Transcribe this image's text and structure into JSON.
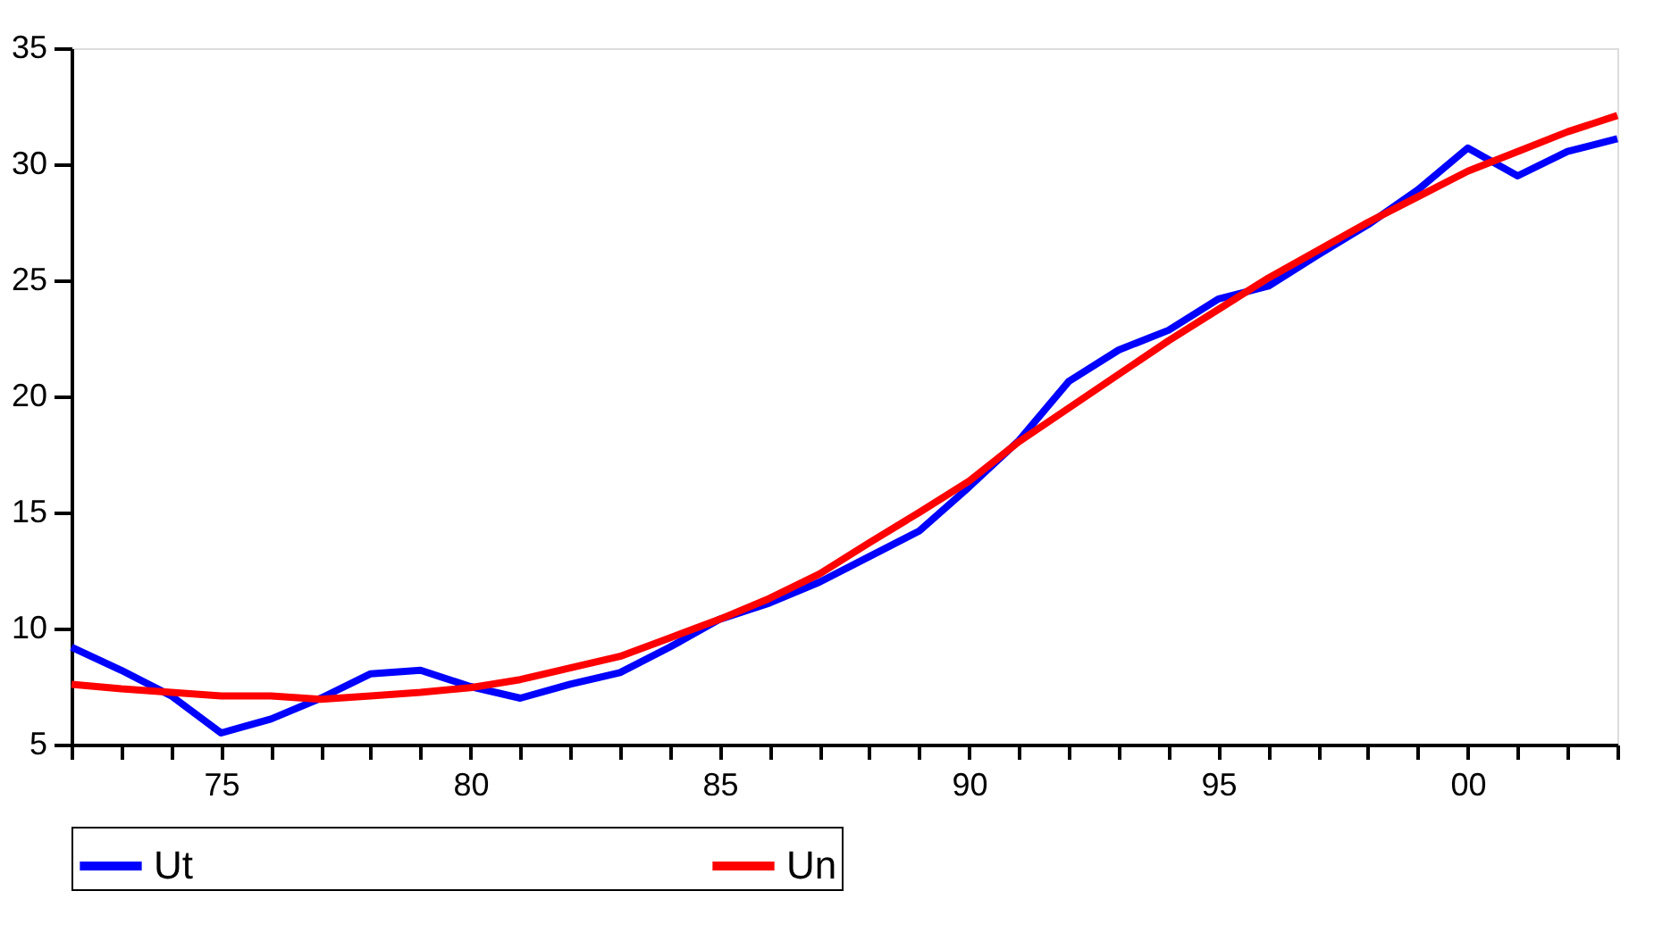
{
  "chart_data": {
    "type": "line",
    "x": [
      1972,
      1973,
      1974,
      1975,
      1976,
      1977,
      1978,
      1979,
      1980,
      1981,
      1982,
      1983,
      1984,
      1985,
      1986,
      1987,
      1988,
      1989,
      1990,
      1991,
      1992,
      1993,
      1994,
      1995,
      1996,
      1997,
      1998,
      1999,
      2000,
      2001,
      2002,
      2003
    ],
    "series": [
      {
        "name": "Ut",
        "color": "#0000ff",
        "values": [
          9.2,
          8.2,
          7.1,
          5.5,
          6.1,
          7.0,
          8.05,
          8.2,
          7.5,
          7.0,
          7.6,
          8.1,
          9.2,
          10.4,
          11.1,
          12.0,
          13.1,
          14.2,
          16.1,
          18.1,
          20.65,
          22.0,
          22.85,
          24.2,
          24.75,
          26.1,
          27.4,
          28.9,
          30.7,
          29.5,
          30.55,
          31.1
        ]
      },
      {
        "name": "Un",
        "color": "#ff0000",
        "values": [
          7.6,
          7.4,
          7.25,
          7.1,
          7.1,
          6.95,
          7.1,
          7.25,
          7.45,
          7.8,
          8.3,
          8.8,
          9.6,
          10.4,
          11.3,
          12.35,
          13.7,
          15.0,
          16.35,
          18.05,
          19.5,
          20.95,
          22.4,
          23.75,
          25.1,
          26.3,
          27.5,
          28.6,
          29.7,
          30.55,
          31.4,
          32.1
        ]
      }
    ],
    "xlim": [
      1972,
      2003
    ],
    "xticks": [
      {
        "value": 1972,
        "label": null
      },
      {
        "value": 1973,
        "label": null
      },
      {
        "value": 1974,
        "label": null
      },
      {
        "value": 1975,
        "label": "75"
      },
      {
        "value": 1976,
        "label": null
      },
      {
        "value": 1977,
        "label": null
      },
      {
        "value": 1978,
        "label": null
      },
      {
        "value": 1979,
        "label": null
      },
      {
        "value": 1980,
        "label": "80"
      },
      {
        "value": 1981,
        "label": null
      },
      {
        "value": 1982,
        "label": null
      },
      {
        "value": 1983,
        "label": null
      },
      {
        "value": 1984,
        "label": null
      },
      {
        "value": 1985,
        "label": "85"
      },
      {
        "value": 1986,
        "label": null
      },
      {
        "value": 1987,
        "label": null
      },
      {
        "value": 1988,
        "label": null
      },
      {
        "value": 1989,
        "label": null
      },
      {
        "value": 1990,
        "label": "90"
      },
      {
        "value": 1991,
        "label": null
      },
      {
        "value": 1992,
        "label": null
      },
      {
        "value": 1993,
        "label": null
      },
      {
        "value": 1994,
        "label": null
      },
      {
        "value": 1995,
        "label": "95"
      },
      {
        "value": 1996,
        "label": null
      },
      {
        "value": 1997,
        "label": null
      },
      {
        "value": 1998,
        "label": null
      },
      {
        "value": 1999,
        "label": null
      },
      {
        "value": 2000,
        "label": "00"
      },
      {
        "value": 2001,
        "label": null
      },
      {
        "value": 2002,
        "label": null
      },
      {
        "value": 2003,
        "label": null
      }
    ],
    "ylim": [
      5,
      35
    ],
    "yticks": [
      5,
      10,
      15,
      20,
      25,
      30,
      35
    ],
    "grid": false,
    "legend": "bottom",
    "marker": "none",
    "line_style": "solid"
  }
}
